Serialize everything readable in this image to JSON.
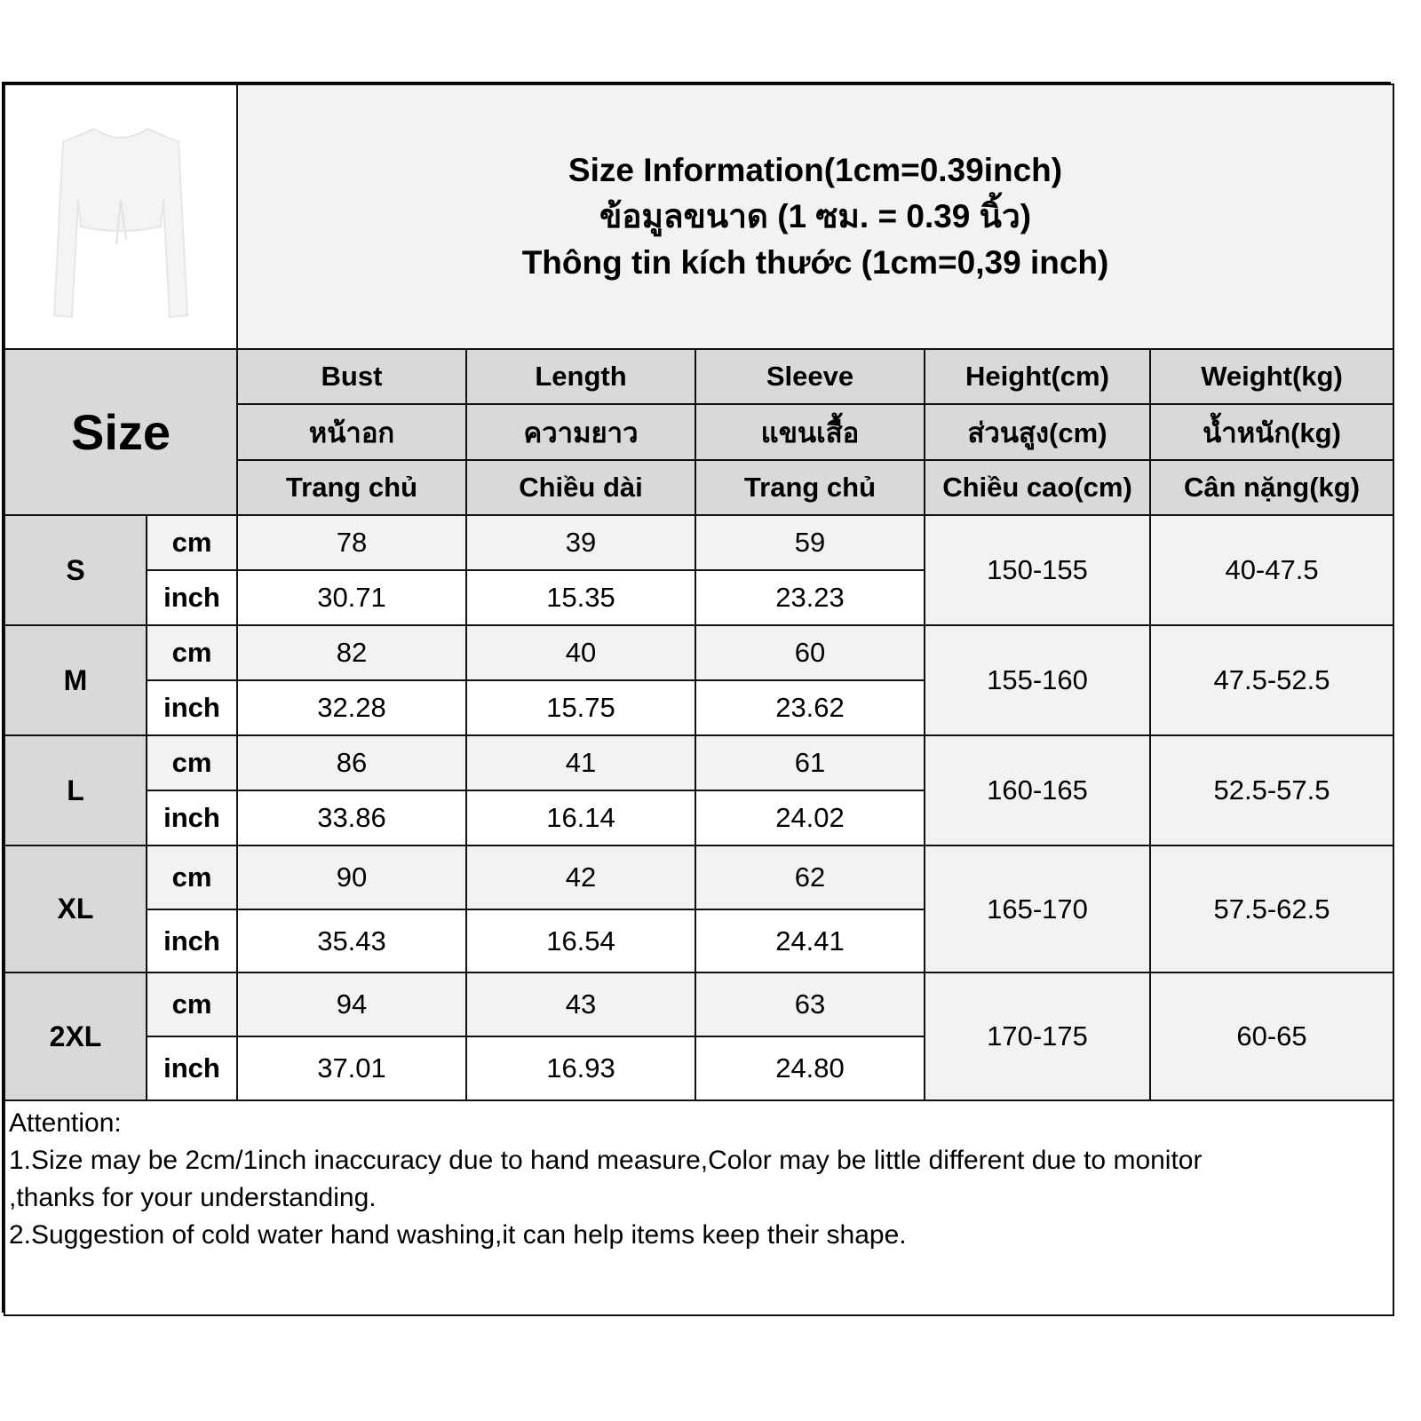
{
  "title_lines": [
    "Size Information(1cm=0.39inch)",
    "ข้อมูลขนาด (1 ซม. = 0.39 นิ้ว)",
    "Thông tin kích thước (1cm=0,39 inch)"
  ],
  "size_header": "Size",
  "columns": [
    {
      "en": "Bust",
      "th": "หน้าอก",
      "vi": "Trang chủ"
    },
    {
      "en": "Length",
      "th": "ความยาว",
      "vi": "Chiều dài"
    },
    {
      "en": "Sleeve",
      "th": "แขนเสื้อ",
      "vi": "Trang chủ"
    },
    {
      "en": "Height(cm)",
      "th": "ส่วนสูง(cm)",
      "vi": "Chiều cao(cm)"
    },
    {
      "en": "Weight(kg)",
      "th": "น้ำหนัก(kg)",
      "vi": "Cân nặng(kg)"
    }
  ],
  "units": {
    "cm": "cm",
    "inch": "inch"
  },
  "rows": [
    {
      "size": "S",
      "cm": [
        "78",
        "39",
        "59"
      ],
      "inch": [
        "30.71",
        "15.35",
        "23.23"
      ],
      "height": "150-155",
      "weight": "40-47.5"
    },
    {
      "size": "M",
      "cm": [
        "82",
        "40",
        "60"
      ],
      "inch": [
        "32.28",
        "15.75",
        "23.62"
      ],
      "height": "155-160",
      "weight": "47.5-52.5"
    },
    {
      "size": "L",
      "cm": [
        "86",
        "41",
        "61"
      ],
      "inch": [
        "33.86",
        "16.14",
        "24.02"
      ],
      "height": "160-165",
      "weight": "52.5-57.5"
    },
    {
      "size": "XL",
      "cm": [
        "90",
        "42",
        "62"
      ],
      "inch": [
        "35.43",
        "16.54",
        "24.41"
      ],
      "height": "165-170",
      "weight": "57.5-62.5"
    },
    {
      "size": "2XL",
      "cm": [
        "94",
        "43",
        "63"
      ],
      "inch": [
        "37.01",
        "16.93",
        "24.80"
      ],
      "height": "170-175",
      "weight": "60-65"
    }
  ],
  "attention": [
    "Attention:",
    "1.Size may be 2cm/1inch inaccuracy due to hand measure,Color may be little different due to monitor",
    ",thanks for your understanding.",
    "2.Suggestion of cold water hand washing,it can help items keep their shape."
  ]
}
